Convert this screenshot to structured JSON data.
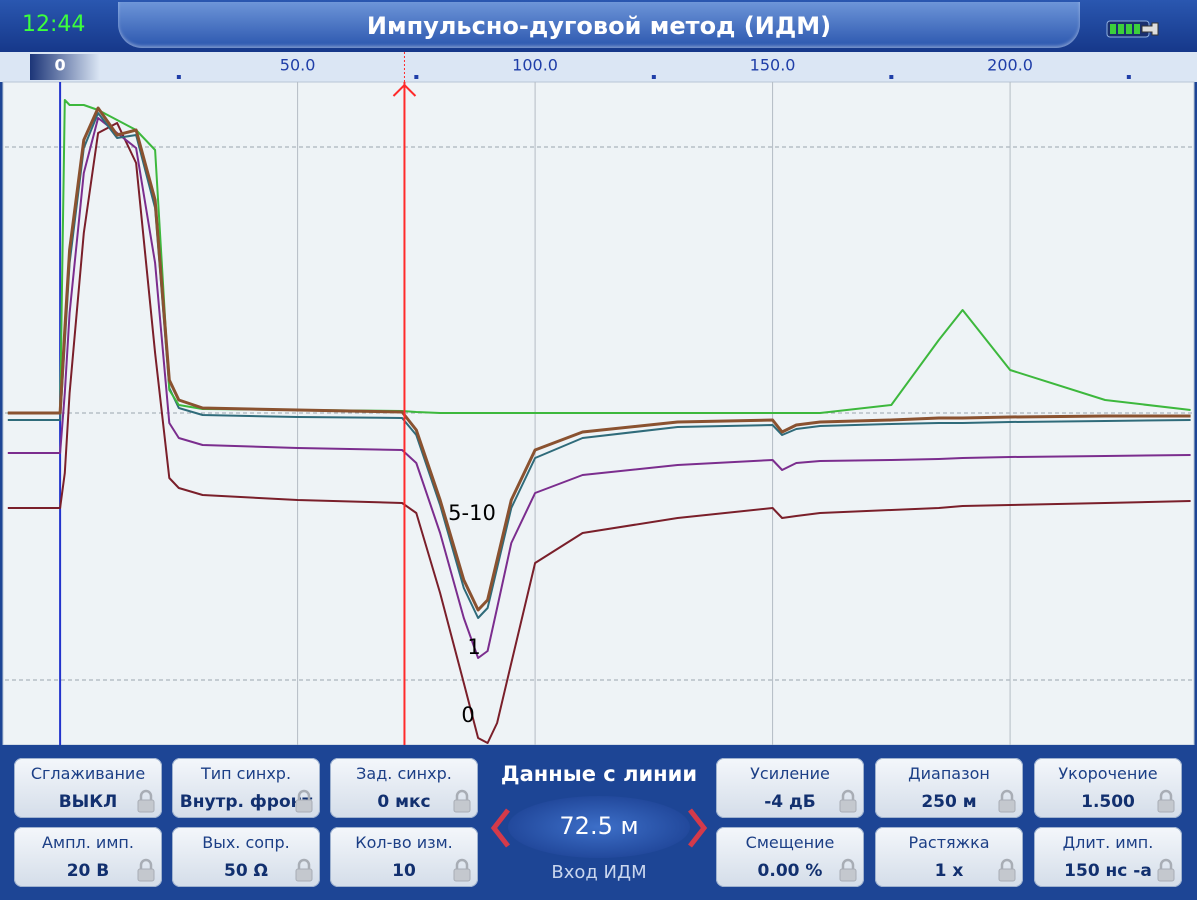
{
  "header": {
    "time": "12:44",
    "title": "Импульсно-дуговой метод (ИДМ)"
  },
  "chart_data": {
    "type": "line",
    "xlim": [
      -11.6,
      238.3
    ],
    "xticks": [
      0,
      {
        "value": 50,
        "label": "50.0"
      },
      {
        "value": 100,
        "label": "100.0"
      },
      {
        "value": 150,
        "label": "150.0"
      },
      {
        "value": 200,
        "label": "200.0"
      }
    ],
    "ylim": [
      -332,
      328
    ],
    "yticks": [
      -267,
      0,
      266
    ],
    "grid": true,
    "cursor": 72.5,
    "x": [
      -11,
      0,
      1,
      2,
      5,
      8,
      12,
      16,
      20,
      23,
      25,
      30,
      50,
      72,
      75,
      80,
      85,
      88,
      90,
      92,
      95,
      100,
      110,
      130,
      150,
      152,
      155,
      160,
      175,
      185,
      190,
      200,
      220,
      238
    ],
    "series": [
      {
        "color": "#7a1f2a",
        "values": [
          -95,
          -95,
          -60,
          20,
          180,
          280,
          290,
          250,
          60,
          -65,
          -75,
          -82,
          -87,
          -90,
          -100,
          -180,
          -270,
          -325,
          -330,
          -310,
          -250,
          -150,
          -120,
          -105,
          -95,
          -105,
          -103,
          -100,
          -97,
          -95,
          -93,
          -92,
          -90,
          -88
        ]
      },
      {
        "color": "#7b2d8e",
        "values": [
          -40,
          -40,
          20,
          100,
          240,
          295,
          280,
          265,
          150,
          -10,
          -25,
          -32,
          -35,
          -37,
          -50,
          -120,
          -205,
          -245,
          -238,
          -195,
          -130,
          -80,
          -62,
          -52,
          -47,
          -57,
          -50,
          -48,
          -47,
          -46,
          -45,
          -44,
          -43,
          -42
        ]
      },
      {
        "color": "#2f6b7a",
        "values": [
          -7,
          -7,
          70,
          150,
          265,
          300,
          275,
          278,
          205,
          25,
          5,
          -2,
          -4,
          -5,
          -22,
          -92,
          -175,
          -205,
          -195,
          -155,
          -95,
          -45,
          -25,
          -14,
          -12,
          -22,
          -16,
          -13,
          -11,
          -10,
          -10,
          -9,
          -8,
          -7
        ]
      },
      {
        "color": "#3db83d",
        "values": [
          0,
          0,
          313,
          308,
          308,
          303,
          293,
          283,
          263,
          23,
          8,
          4,
          3,
          2,
          1,
          0,
          0,
          0,
          0,
          0,
          0,
          0,
          0,
          0,
          0,
          0,
          0,
          0,
          8,
          73,
          103,
          43,
          13,
          3
        ]
      },
      {
        "color": "#8a5230",
        "values": [
          0,
          0,
          83,
          163,
          273,
          305,
          278,
          283,
          213,
          33,
          13,
          5,
          3,
          1,
          -17,
          -87,
          -167,
          -197,
          -187,
          -147,
          -87,
          -37,
          -19,
          -9,
          -7,
          -19,
          -12,
          -9,
          -7,
          -5,
          -5,
          -4,
          -3,
          -3
        ]
      }
    ],
    "annotations": [
      "5-10",
      "1",
      "0"
    ]
  },
  "panel": {
    "buttons": [
      {
        "label": "Сглаживание",
        "value": "ВЫКЛ"
      },
      {
        "label": "Тип синхр.",
        "value": "Внутр. фронт"
      },
      {
        "label": "Зад. синхр.",
        "value": "0 мкс"
      },
      {
        "label": "Усиление",
        "value": "-4 дБ"
      },
      {
        "label": "Диапазон",
        "value": "250 м"
      },
      {
        "label": "Укорочение",
        "value": "1.500"
      },
      {
        "label": "Ампл. имп.",
        "value": "20 В"
      },
      {
        "label": "Вых. сопр.",
        "value": "50 Ω"
      },
      {
        "label": "Кол-во изм.",
        "value": "10"
      },
      {
        "label": "Смещение",
        "value": "0.00 %"
      },
      {
        "label": "Растяжка",
        "value": "1 х"
      },
      {
        "label": "Длит. имп.",
        "value": "150 нс -а"
      }
    ],
    "center": {
      "title": "Данные с линии",
      "value": "72.5 м",
      "input": "Вход ИДМ"
    }
  }
}
